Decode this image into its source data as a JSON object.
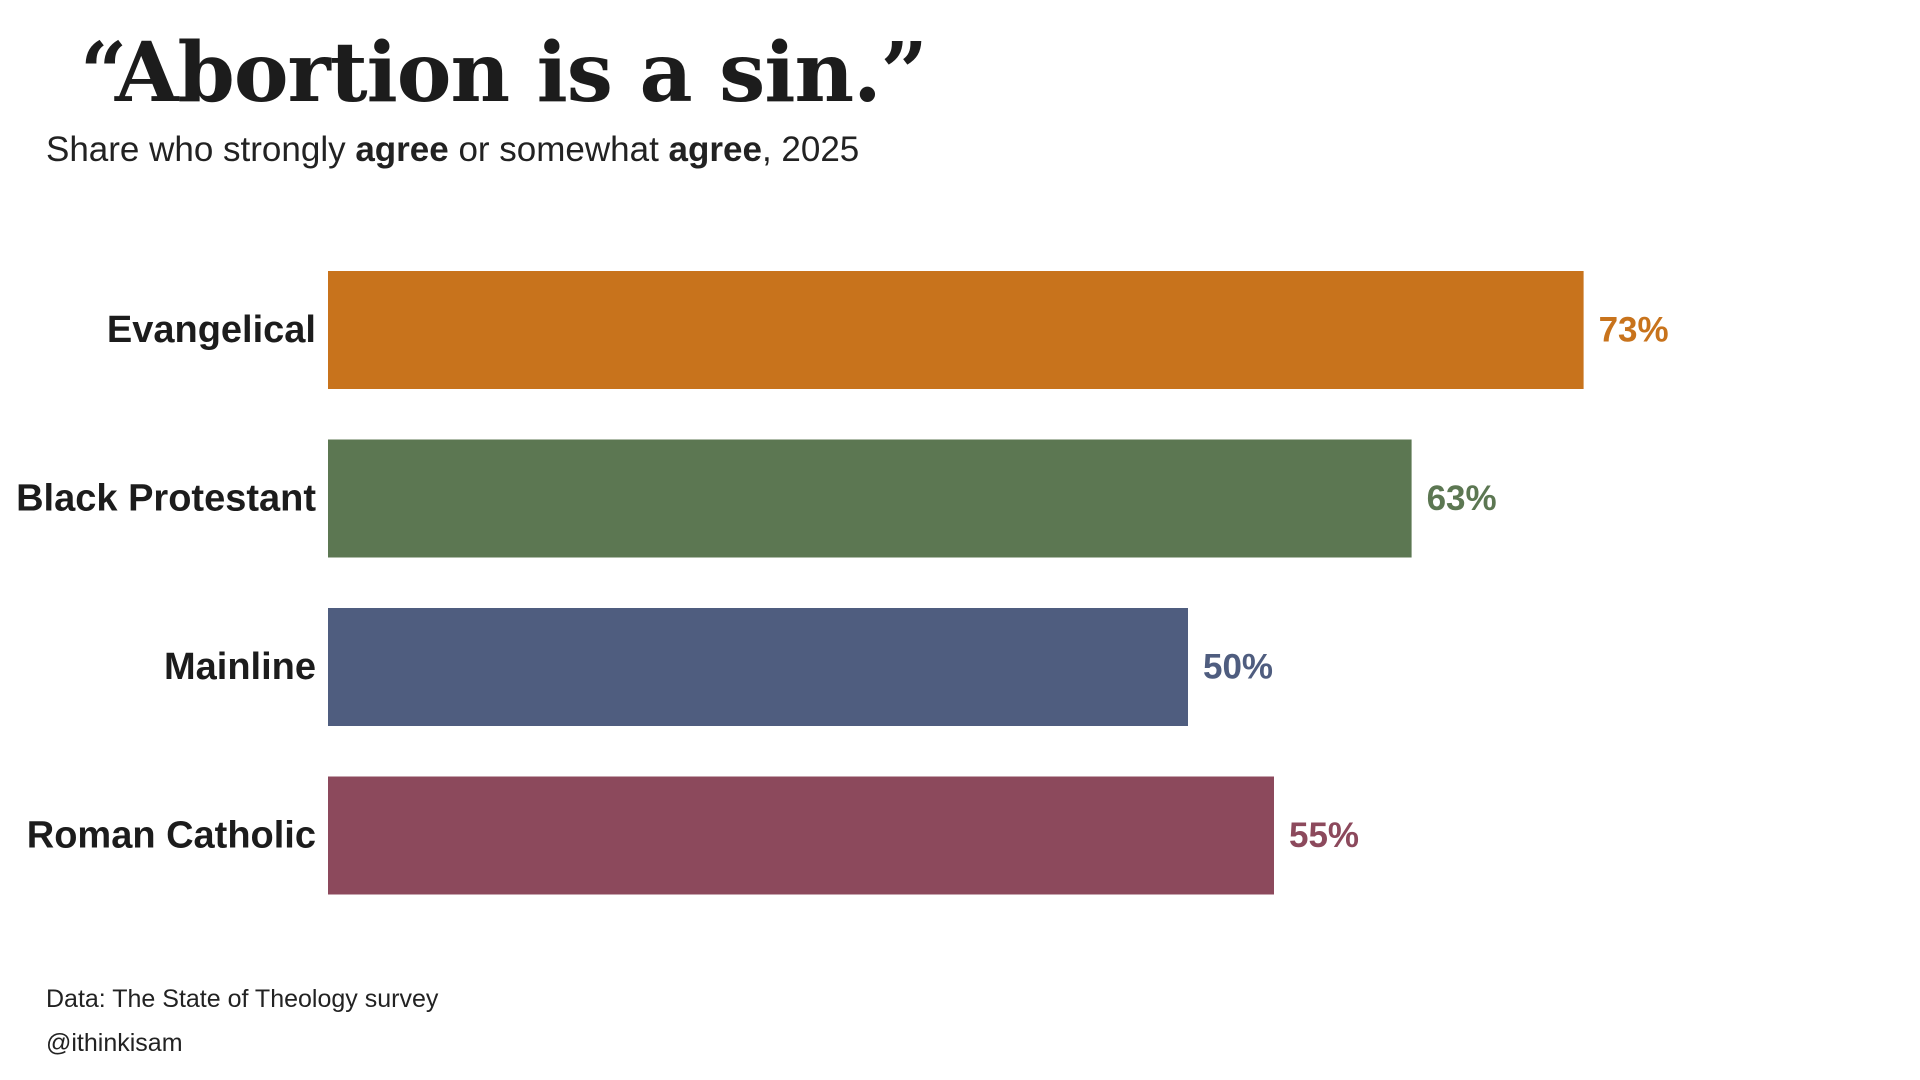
{
  "chart_data": {
    "type": "bar",
    "orientation": "horizontal",
    "title": "“Abortion is a sin.”",
    "subtitle_parts": [
      "Share who strongly ",
      "agree",
      " or somewhat ",
      "agree",
      ", 2025"
    ],
    "categories": [
      "Evangelical",
      "Black Protestant",
      "Mainline",
      "Roman Catholic"
    ],
    "values": [
      73,
      63,
      50,
      55
    ],
    "value_labels": [
      "73%",
      "63%",
      "50%",
      "55%"
    ],
    "colors": [
      "#c8731c",
      "#5c7752",
      "#4f5d7f",
      "#8c495c"
    ],
    "xlim": [
      0,
      100
    ],
    "grid": false,
    "legend": "none",
    "source": "Data: The State of Theology survey",
    "credit": "@ithinkisam"
  }
}
